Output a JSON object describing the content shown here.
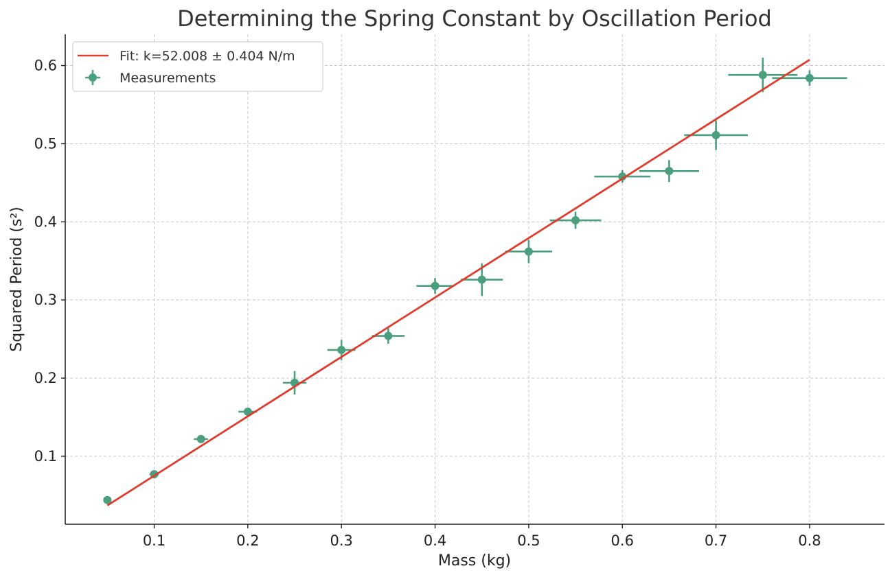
{
  "chart_data": {
    "type": "scatter",
    "title": "Determining the Spring Constant by Oscillation Period",
    "xlabel": "Mass (kg)",
    "ylabel": "Squared Period (s²)",
    "xlim": [
      0.005,
      0.88
    ],
    "ylim": [
      0.013,
      0.64
    ],
    "x_ticks": [
      0.1,
      0.2,
      0.3,
      0.4,
      0.5,
      0.6,
      0.7,
      0.8
    ],
    "x_tick_labels": [
      "0.1",
      "0.2",
      "0.3",
      "0.4",
      "0.5",
      "0.6",
      "0.7",
      "0.8"
    ],
    "y_ticks": [
      0.1,
      0.2,
      0.3,
      0.4,
      0.5,
      0.6
    ],
    "y_tick_labels": [
      "0.1",
      "0.2",
      "0.3",
      "0.4",
      "0.5",
      "0.6"
    ],
    "grid": true,
    "legend_position": "top-left",
    "series": [
      {
        "name": "Fit: k=52.008 ± 0.404 N/m",
        "kind": "line",
        "color": "#e03c2d",
        "x": [
          0.05,
          0.8
        ],
        "y": [
          0.0371,
          0.6073
        ]
      },
      {
        "name": "Measurements",
        "kind": "errorbar",
        "color": "#4a9f7e",
        "x": [
          0.05,
          0.1,
          0.15,
          0.2,
          0.25,
          0.3,
          0.35,
          0.4,
          0.45,
          0.5,
          0.55,
          0.6,
          0.65,
          0.7,
          0.75,
          0.8
        ],
        "y": [
          0.044,
          0.077,
          0.122,
          0.157,
          0.194,
          0.236,
          0.254,
          0.318,
          0.326,
          0.362,
          0.402,
          0.458,
          0.465,
          0.511,
          0.588,
          0.584
        ],
        "x_err": [
          0.002,
          0.005,
          0.0075,
          0.01,
          0.0125,
          0.015,
          0.0175,
          0.02,
          0.0225,
          0.025,
          0.0275,
          0.03,
          0.032,
          0.034,
          0.037,
          0.04
        ],
        "y_err": [
          0.002,
          0.003,
          0.003,
          0.004,
          0.015,
          0.013,
          0.01,
          0.01,
          0.021,
          0.015,
          0.011,
          0.008,
          0.014,
          0.019,
          0.022,
          0.01
        ]
      }
    ]
  }
}
